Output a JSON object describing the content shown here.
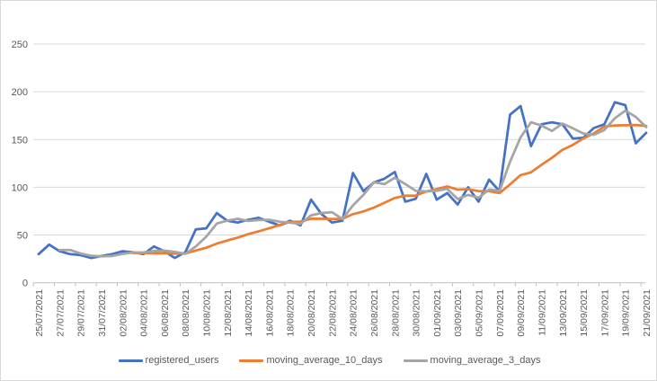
{
  "colors": {
    "background": "#ffffff",
    "chart_border": "#d9d9d9",
    "gridline": "#d9d9d9",
    "axis_line": "#bfbfbf",
    "tick_text": "#595959",
    "series_blue": "#4472C4",
    "series_orange": "#ED7D31",
    "series_gray": "#A5A5A5"
  },
  "chart_data": {
    "type": "line",
    "title": "",
    "xlabel": "",
    "ylabel": "",
    "grid": true,
    "legend_position": "bottom",
    "ylim": [
      0,
      250
    ],
    "y_ticks": [
      0,
      50,
      100,
      150,
      200,
      250
    ],
    "x_tick_interval": 2,
    "x": [
      "25/07/2021",
      "26/07/2021",
      "27/07/2021",
      "28/07/2021",
      "29/07/2021",
      "30/07/2021",
      "31/07/2021",
      "01/08/2021",
      "02/08/2021",
      "03/08/2021",
      "04/08/2021",
      "05/08/2021",
      "06/08/2021",
      "07/08/2021",
      "08/08/2021",
      "09/08/2021",
      "10/08/2021",
      "11/08/2021",
      "12/08/2021",
      "13/08/2021",
      "14/08/2021",
      "15/08/2021",
      "16/08/2021",
      "17/08/2021",
      "18/08/2021",
      "19/08/2021",
      "20/08/2021",
      "21/08/2021",
      "22/08/2021",
      "23/08/2021",
      "24/08/2021",
      "25/08/2021",
      "26/08/2021",
      "27/08/2021",
      "28/08/2021",
      "29/08/2021",
      "30/08/2021",
      "31/08/2021",
      "01/09/2021",
      "02/09/2021",
      "03/09/2021",
      "04/09/2021",
      "05/09/2021",
      "06/09/2021",
      "07/09/2021",
      "08/09/2021",
      "09/09/2021",
      "10/09/2021",
      "11/09/2021",
      "12/09/2021",
      "13/09/2021",
      "14/09/2021",
      "15/09/2021",
      "16/09/2021",
      "17/09/2021",
      "18/09/2021",
      "19/09/2021",
      "20/09/2021",
      "21/09/2021"
    ],
    "series": [
      {
        "name": "registered_users",
        "color": "#4472C4",
        "values": [
          30,
          40,
          33,
          30,
          29,
          26,
          28,
          30,
          33,
          32,
          30,
          38,
          33,
          26,
          32,
          56,
          57,
          73,
          65,
          63,
          66,
          68,
          64,
          60,
          65,
          60,
          87,
          72,
          63,
          65,
          115,
          96,
          105,
          109,
          116,
          85,
          88,
          114,
          87,
          94,
          82,
          100,
          85,
          108,
          96,
          176,
          185,
          143,
          166,
          168,
          166,
          151,
          152,
          162,
          166,
          189,
          186,
          146,
          157
        ]
      },
      {
        "name": "moving_average_10_days",
        "color": "#ED7D31",
        "values": [
          null,
          null,
          null,
          null,
          null,
          null,
          null,
          null,
          null,
          31.1,
          31.1,
          30.9,
          30.9,
          30.5,
          30.8,
          33.8,
          36.7,
          41,
          44.2,
          47.3,
          50.9,
          53.9,
          57,
          60.4,
          63.7,
          64.1,
          67.1,
          67,
          66.8,
          67,
          71.9,
          74.7,
          78.8,
          83.7,
          88.8,
          91.3,
          91.4,
          95.6,
          98,
          100.9,
          97.6,
          98,
          96,
          95.9,
          93.9,
          103,
          112.7,
          115.6,
          123.5,
          130.9,
          139.3,
          144.4,
          151.1,
          156.5,
          163.5,
          164.8,
          164.9,
          165.2,
          164.3
        ]
      },
      {
        "name": "moving_average_3_days",
        "color": "#A5A5A5",
        "values": [
          null,
          null,
          34.3,
          34.3,
          30.7,
          28.3,
          27.7,
          28,
          30.3,
          31.7,
          31.7,
          33.3,
          33.7,
          32.3,
          30.3,
          38,
          48.3,
          62,
          65,
          67,
          64.7,
          65.7,
          66,
          64,
          63,
          61.7,
          70.7,
          73,
          74,
          66.7,
          81,
          92,
          105.3,
          103.3,
          110,
          103.3,
          96.3,
          95.7,
          96.3,
          98.3,
          87.7,
          92,
          89,
          97.7,
          96.3,
          126.7,
          152.3,
          168,
          164.7,
          159,
          166.7,
          161.7,
          156.3,
          155,
          160,
          172.3,
          180.3,
          173.7,
          163
        ]
      }
    ]
  }
}
